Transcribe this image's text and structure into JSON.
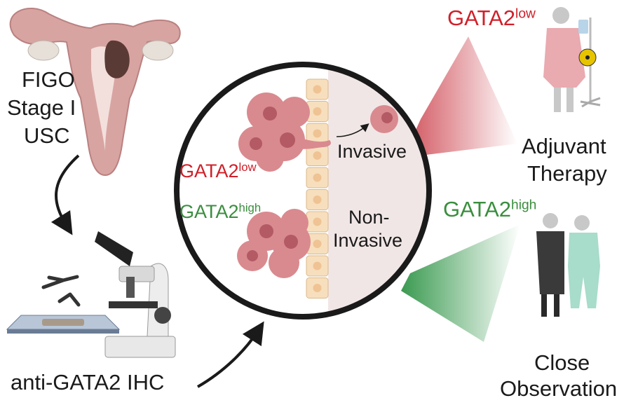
{
  "colors": {
    "low": "#d0202a",
    "high": "#3a8e3e",
    "tumor": "#d98a8f",
    "epithelium": "#f7dfbd",
    "stroma": "#f1e6e6"
  },
  "left": {
    "stage_lines": [
      "FIGO",
      "Stage I",
      "USC"
    ],
    "assay_label": "anti-GATA2 IHC"
  },
  "circle": {
    "low_label": {
      "base": "GATA2",
      "sup": "low"
    },
    "high_label": {
      "base": "GATA2",
      "sup": "high"
    },
    "invasive_label": "Invasive",
    "non_invasive_lines": [
      "Non-",
      "Invasive"
    ]
  },
  "right": {
    "low_label": {
      "base": "GATA2",
      "sup": "low"
    },
    "low_outcome_lines": [
      "Adjuvant",
      "Therapy"
    ],
    "high_label": {
      "base": "GATA2",
      "sup": "high"
    },
    "high_outcome_lines": [
      "Close",
      "Observation"
    ]
  },
  "icons": [
    "uterus-tumor-icon",
    "microscope-icon",
    "antibody-icon",
    "slide-icon",
    "tumor-cluster-icon",
    "patient-iv-icon",
    "radiation-icon",
    "doctor-patient-icon"
  ]
}
